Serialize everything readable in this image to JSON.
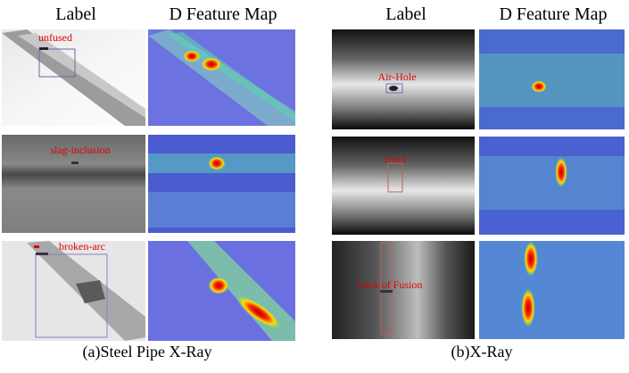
{
  "column_headers": [
    "Label",
    "D Feature Map",
    "Label",
    "D Feature Map"
  ],
  "annotations": [
    "unfused",
    "slag-inclusion",
    "broken-arc",
    "Air-Hole",
    "crack",
    "Lack of Fusion"
  ],
  "captions": [
    "(a)Steel Pipe X-Ray",
    "(b)X-Ray"
  ]
}
